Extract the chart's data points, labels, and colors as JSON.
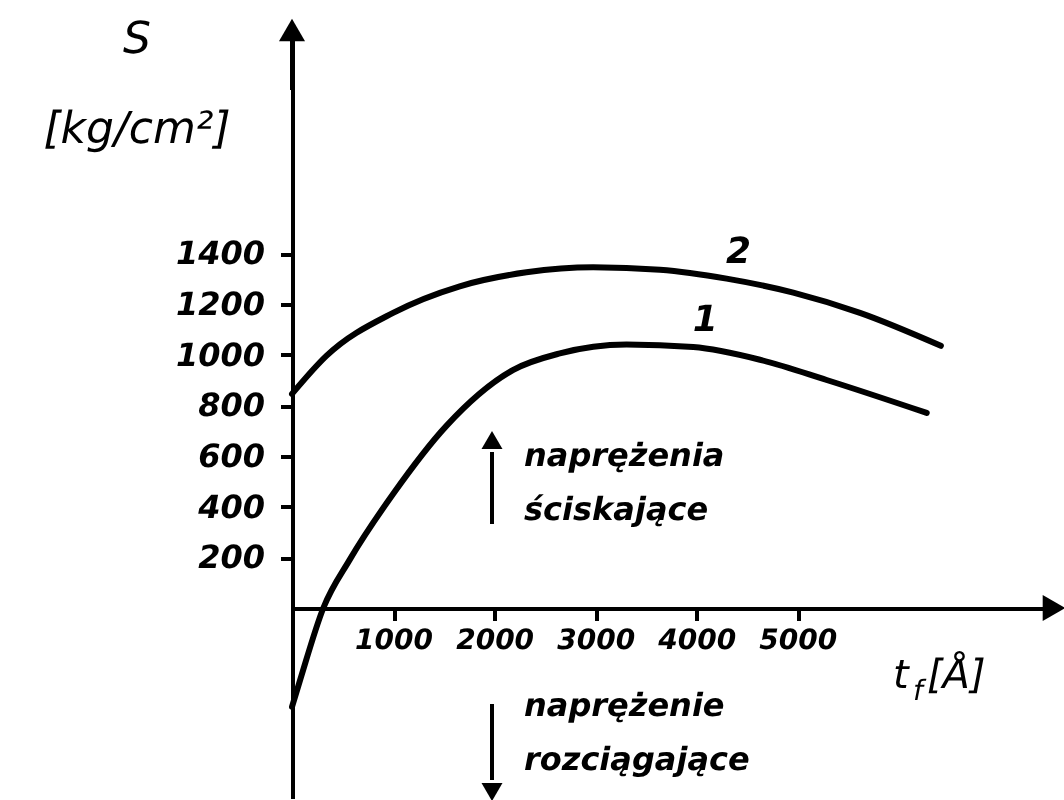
{
  "chart_data": {
    "type": "line",
    "xlabel": "t$_{f}$[Å]",
    "ylabel": "S [kg/cm²]",
    "xlim": [
      0,
      7500
    ],
    "ylim": [
      -750,
      2250
    ],
    "xticks": [
      1000,
      2000,
      3000,
      4000,
      5000
    ],
    "yticks": [
      200,
      400,
      600,
      800,
      1000,
      1200,
      1400
    ],
    "grid": false,
    "legend": false,
    "marker": "none",
    "line_style": "solid",
    "series": [
      {
        "name": "1",
        "color": "#000000",
        "x": [
          0,
          80,
          310,
          570,
          1000,
          1530,
          2190,
          2650,
          3310,
          3970,
          4630,
          5290,
          6280
        ],
        "values": [
          -390,
          -285,
          0,
          190,
          450,
          720,
          940,
          1005,
          1040,
          1030,
          980,
          900,
          770
        ]
      },
      {
        "name": "2",
        "color": "#000000",
        "x": [
          0,
          340,
          1000,
          1660,
          2320,
          2980,
          3640,
          4300,
          4960,
          5620,
          6420
        ],
        "values": [
          845,
          995,
          1165,
          1270,
          1325,
          1345,
          1335,
          1300,
          1245,
          1165,
          1035
        ]
      }
    ],
    "annotations": [
      "naprężenia ściskające",
      "naprężenie rozciągające"
    ]
  }
}
